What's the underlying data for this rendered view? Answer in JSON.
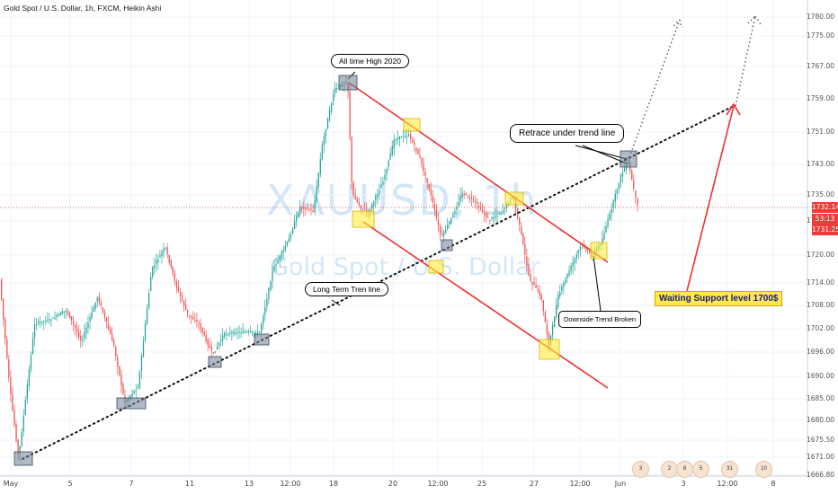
{
  "title": "Gold Spot / U.S. Dollar, 1h, FXCM, Heikin Ashi",
  "watermark": {
    "symbol": "XAUUSD, 1h",
    "description": "Gold Spot / U.S. Dollar"
  },
  "price_axis_labels": [
    "1780.00",
    "1775.00",
    "1767.00",
    "1759.00",
    "1751.00",
    "1743.00",
    "1735.00",
    "1728.00",
    "1720.00",
    "1714.00",
    "1708.00",
    "1702.00",
    "1696.00",
    "1690.00",
    "1685.00",
    "1680.00",
    "1675.50",
    "1671.00",
    "1666.80"
  ],
  "time_axis_labels": [
    "May",
    "5",
    "7",
    "11",
    "13",
    "12:00",
    "18",
    "20",
    "12:00",
    "25",
    "27",
    "12:00",
    "Jun",
    "3",
    "12:00",
    "8"
  ],
  "price_tags": {
    "last_price": "1732.14",
    "countdown": "53:13",
    "low_price": "1731.25"
  },
  "colors": {
    "up": "#26a69a",
    "down": "#ef5350",
    "channel": "#f23030",
    "last_price": "#ef3a3a",
    "highlight_yellow": "#ffeb3b",
    "highlight_gray": "#6f7f95"
  },
  "annotations": {
    "all_time_high": "All time High 2020",
    "retrace": "Retrace under trend line",
    "long_term": "Long Term Tren line",
    "downside_broken": "Downside Trend Broken",
    "support": "Waiting Support level 1700$"
  },
  "calendar_badges": [
    "3",
    "2",
    "8",
    "5",
    "31",
    "10"
  ],
  "chart_data": {
    "type": "candlestick",
    "style": "heikin-ashi",
    "interval": "1h",
    "ylim": [
      1666.8,
      1782
    ],
    "y_scale": "log",
    "grid": true,
    "last_price": 1732.14,
    "key_points": [
      {
        "t": "May 1",
        "price": 1671,
        "label": "trend-line anchor low"
      },
      {
        "t": "May 7",
        "price": 1684
      },
      {
        "t": "May 11",
        "price": 1694
      },
      {
        "t": "May 13",
        "price": 1700
      },
      {
        "t": "May 18",
        "price": 1765,
        "label": "All time High 2020"
      },
      {
        "t": "May 19",
        "price": 1732
      },
      {
        "t": "May 19",
        "price": 1754
      },
      {
        "t": "May 22",
        "price": 1727
      },
      {
        "t": "May 22",
        "price": 1718
      },
      {
        "t": "May 26",
        "price": 1735
      },
      {
        "t": "May 28",
        "price": 1697
      },
      {
        "t": "May 29",
        "price": 1723
      },
      {
        "t": "Jun 1",
        "price": 1745,
        "label": "Retrace under trend line"
      }
    ]
  }
}
